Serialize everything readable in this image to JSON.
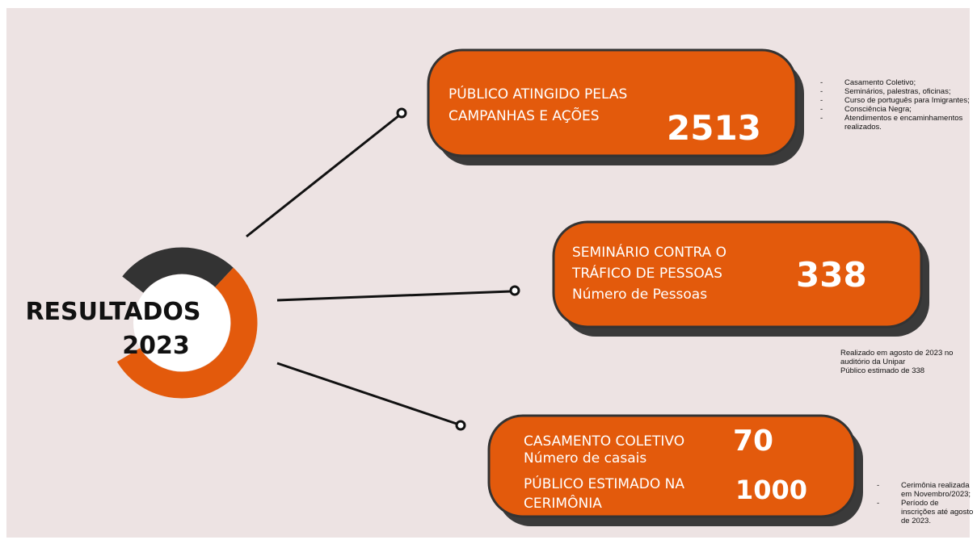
{
  "title": {
    "lines": [
      "RESULTADOS",
      "2023"
    ]
  },
  "cards": [
    {
      "metrics": [
        {
          "label_lines": [
            "PÚBLICO ATINGIDO PELAS",
            "CAMPANHAS E AÇÕES"
          ],
          "value": 2513
        }
      ],
      "notes": {
        "style": "bullets",
        "items": [
          "Casamento Coletivo;",
          "Seminários, palestras, oficinas;",
          "Curso de português para Imigrantes;",
          "Consciência Negra;",
          "Atendimentos e encaminhamentos realizados."
        ]
      }
    },
    {
      "metrics": [
        {
          "label_lines": [
            "SEMINÁRIO CONTRA O",
            "TRÁFICO DE PESSOAS",
            "Número de Pessoas"
          ],
          "value": 338
        }
      ],
      "notes": {
        "style": "plain",
        "items": [
          "Realizado em  agosto de 2023 no auditório da Unipar",
          "Público estimado de 338"
        ]
      }
    },
    {
      "metrics": [
        {
          "label_lines": [
            "CASAMENTO COLETIVO",
            "Número de casais"
          ],
          "value": 70
        },
        {
          "label_lines": [
            "PÚBLICO ESTIMADO NA",
            "CERIMÔNIA"
          ],
          "value": 1000
        }
      ],
      "notes": {
        "style": "bullets",
        "items": [
          "Cerimônia realizada em Novembro/2023;",
          "Período de inscrições até agosto de 2023."
        ]
      }
    }
  ]
}
